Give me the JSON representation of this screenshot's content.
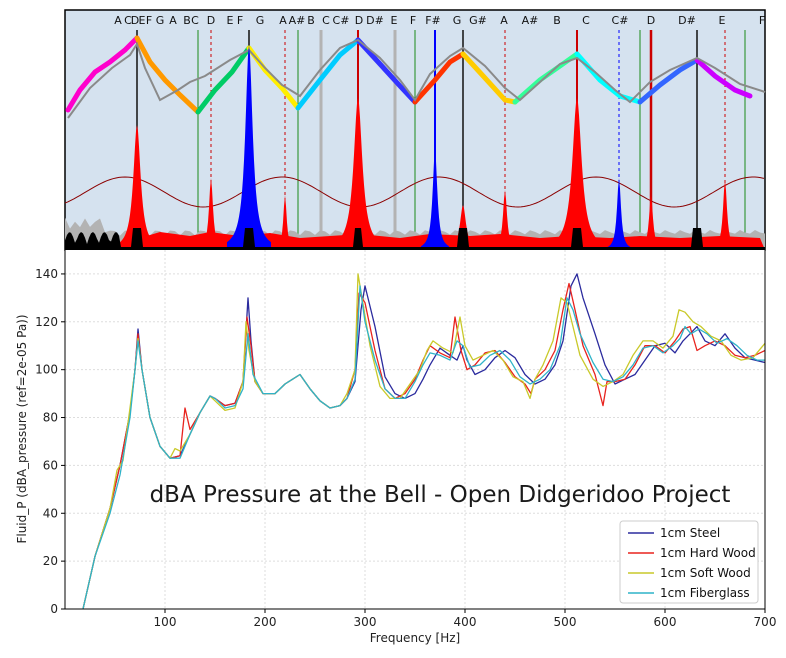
{
  "chart_data": [
    {
      "type": "area",
      "note_labels": [
        "A",
        "C",
        "D",
        "E",
        "F",
        "G",
        "A",
        "B",
        "C",
        "D",
        "E",
        "F",
        "G",
        "A",
        "A#",
        "B",
        "C",
        "C#",
        "D",
        "D#",
        "E",
        "F",
        "F#",
        "G",
        "G#",
        "A",
        "A#",
        "B",
        "C",
        "C#",
        "D",
        "D#",
        "E",
        "F"
      ],
      "colors": {
        "background": "#d5e2ef",
        "impedance": "#ff0000",
        "highlight": "#0000ff",
        "base": "#000000",
        "grey": "#b3b3b3",
        "envelope": "#8b0000",
        "tuning": "#888888"
      }
    },
    {
      "type": "line",
      "title": "dBA Pressure at the Bell - Open Didgeridoo Project",
      "xlabel": "Frequency [Hz]",
      "ylabel": "Fluid_P (dBA_pressure (ref=2e-05 Pa))",
      "xlim": [
        0,
        700
      ],
      "ylim": [
        0,
        150
      ],
      "xticks": [
        100,
        200,
        300,
        400,
        500,
        600,
        700
      ],
      "yticks": [
        0,
        20,
        40,
        60,
        80,
        100,
        120,
        140
      ],
      "grid": true,
      "legend_position": "bottom-right",
      "series": [
        {
          "name": "1cm Steel",
          "color": "#2b2b9e",
          "x": [
            18,
            30,
            45,
            55,
            65,
            70,
            73,
            77,
            85,
            95,
            105,
            115,
            125,
            135,
            145,
            150,
            160,
            170,
            178,
            183,
            186,
            190,
            198,
            210,
            220,
            235,
            245,
            255,
            265,
            275,
            282,
            290,
            296,
            300,
            310,
            320,
            330,
            340,
            350,
            358,
            365,
            375,
            385,
            392,
            398,
            402,
            410,
            420,
            430,
            440,
            450,
            460,
            470,
            480,
            490,
            498,
            506,
            512,
            518,
            530,
            540,
            550,
            560,
            570,
            580,
            590,
            600,
            610,
            618,
            625,
            632,
            640,
            650,
            660,
            670,
            680,
            690,
            700
          ],
          "y": [
            0,
            22,
            42,
            60,
            82,
            100,
            117,
            100,
            80,
            68,
            63,
            64,
            73,
            82,
            89,
            88,
            85,
            86,
            95,
            130,
            112,
            95,
            90,
            90,
            94,
            98,
            92,
            87,
            84,
            85,
            88,
            95,
            125,
            135,
            118,
            97,
            90,
            88,
            90,
            96,
            102,
            109,
            106,
            104,
            110,
            104,
            98,
            100,
            105,
            108,
            105,
            98,
            94,
            96,
            102,
            112,
            135,
            140,
            130,
            115,
            102,
            94,
            96,
            98,
            104,
            110,
            111,
            107,
            112,
            115,
            118,
            112,
            110,
            115,
            109,
            105,
            104,
            103
          ]
        },
        {
          "name": "1cm Hard Wood",
          "color": "#e8231e",
          "x": [
            18,
            30,
            45,
            55,
            65,
            70,
            73,
            77,
            85,
            95,
            105,
            115,
            120,
            125,
            135,
            145,
            150,
            160,
            170,
            178,
            182,
            186,
            190,
            198,
            210,
            220,
            235,
            245,
            255,
            265,
            275,
            282,
            290,
            294,
            300,
            310,
            320,
            330,
            340,
            350,
            358,
            365,
            375,
            385,
            390,
            396,
            402,
            410,
            420,
            430,
            440,
            450,
            460,
            466,
            470,
            480,
            490,
            498,
            504,
            510,
            518,
            530,
            538,
            542,
            550,
            560,
            570,
            580,
            590,
            600,
            610,
            618,
            625,
            632,
            640,
            650,
            660,
            670,
            680,
            690,
            700
          ],
          "y": [
            0,
            22,
            42,
            60,
            82,
            100,
            115,
            100,
            80,
            68,
            63,
            64,
            84,
            75,
            82,
            89,
            88,
            85,
            86,
            95,
            122,
            110,
            95,
            90,
            90,
            94,
            98,
            92,
            87,
            84,
            85,
            88,
            100,
            132,
            128,
            108,
            92,
            88,
            90,
            96,
            104,
            110,
            107,
            105,
            122,
            108,
            100,
            102,
            107,
            108,
            103,
            97,
            94,
            90,
            96,
            100,
            108,
            125,
            136,
            125,
            110,
            98,
            85,
            95,
            95,
            96,
            102,
            110,
            110,
            107,
            112,
            117,
            118,
            108,
            110,
            112,
            110,
            106,
            105,
            106,
            108
          ]
        },
        {
          "name": "1cm Soft Wood",
          "color": "#c9c92a",
          "x": [
            18,
            30,
            45,
            52,
            58,
            65,
            70,
            73,
            77,
            85,
            95,
            105,
            110,
            115,
            125,
            135,
            145,
            150,
            160,
            170,
            178,
            181,
            184,
            190,
            198,
            210,
            220,
            235,
            245,
            255,
            265,
            275,
            282,
            290,
            293,
            297,
            305,
            315,
            325,
            335,
            345,
            355,
            362,
            368,
            378,
            388,
            395,
            400,
            408,
            418,
            428,
            438,
            448,
            458,
            465,
            470,
            478,
            488,
            496,
            502,
            508,
            515,
            528,
            538,
            548,
            558,
            568,
            578,
            588,
            598,
            608,
            614,
            620,
            628,
            636,
            646,
            656,
            666,
            676,
            688,
            700
          ],
          "y": [
            0,
            22,
            42,
            58,
            62,
            84,
            100,
            113,
            100,
            80,
            68,
            63,
            67,
            66,
            73,
            82,
            89,
            87,
            83,
            84,
            95,
            120,
            108,
            95,
            90,
            90,
            94,
            98,
            92,
            87,
            84,
            85,
            90,
            100,
            140,
            130,
            110,
            93,
            88,
            88,
            94,
            100,
            108,
            112,
            109,
            107,
            122,
            110,
            104,
            106,
            108,
            104,
            97,
            95,
            88,
            96,
            102,
            112,
            130,
            128,
            118,
            106,
            96,
            93,
            95,
            98,
            106,
            112,
            112,
            109,
            114,
            125,
            124,
            120,
            118,
            114,
            112,
            106,
            104,
            105,
            111
          ]
        },
        {
          "name": "1cm Fiberglass",
          "color": "#2fb3c9",
          "x": [
            18,
            30,
            45,
            55,
            65,
            70,
            73,
            77,
            85,
            95,
            105,
            115,
            125,
            135,
            145,
            150,
            160,
            170,
            178,
            183,
            188,
            198,
            210,
            220,
            235,
            245,
            255,
            265,
            275,
            282,
            290,
            295,
            300,
            310,
            320,
            330,
            340,
            350,
            358,
            365,
            375,
            385,
            392,
            398,
            405,
            415,
            425,
            435,
            445,
            455,
            465,
            475,
            485,
            495,
            502,
            508,
            515,
            528,
            538,
            548,
            558,
            568,
            578,
            588,
            598,
            608,
            615,
            620,
            626,
            634,
            642,
            652,
            662,
            672,
            682,
            692,
            700
          ],
          "y": [
            0,
            22,
            40,
            56,
            80,
            100,
            112,
            100,
            80,
            68,
            63,
            63,
            73,
            82,
            89,
            88,
            84,
            85,
            92,
            115,
            98,
            90,
            90,
            94,
            98,
            92,
            87,
            84,
            85,
            88,
            96,
            135,
            120,
            104,
            92,
            88,
            88,
            95,
            102,
            107,
            106,
            104,
            112,
            110,
            101,
            102,
            106,
            108,
            104,
            97,
            94,
            96,
            100,
            110,
            130,
            125,
            115,
            103,
            96,
            95,
            97,
            102,
            109,
            110,
            107,
            110,
            113,
            118,
            115,
            117,
            115,
            111,
            113,
            110,
            106,
            104,
            104
          ]
        }
      ]
    }
  ]
}
